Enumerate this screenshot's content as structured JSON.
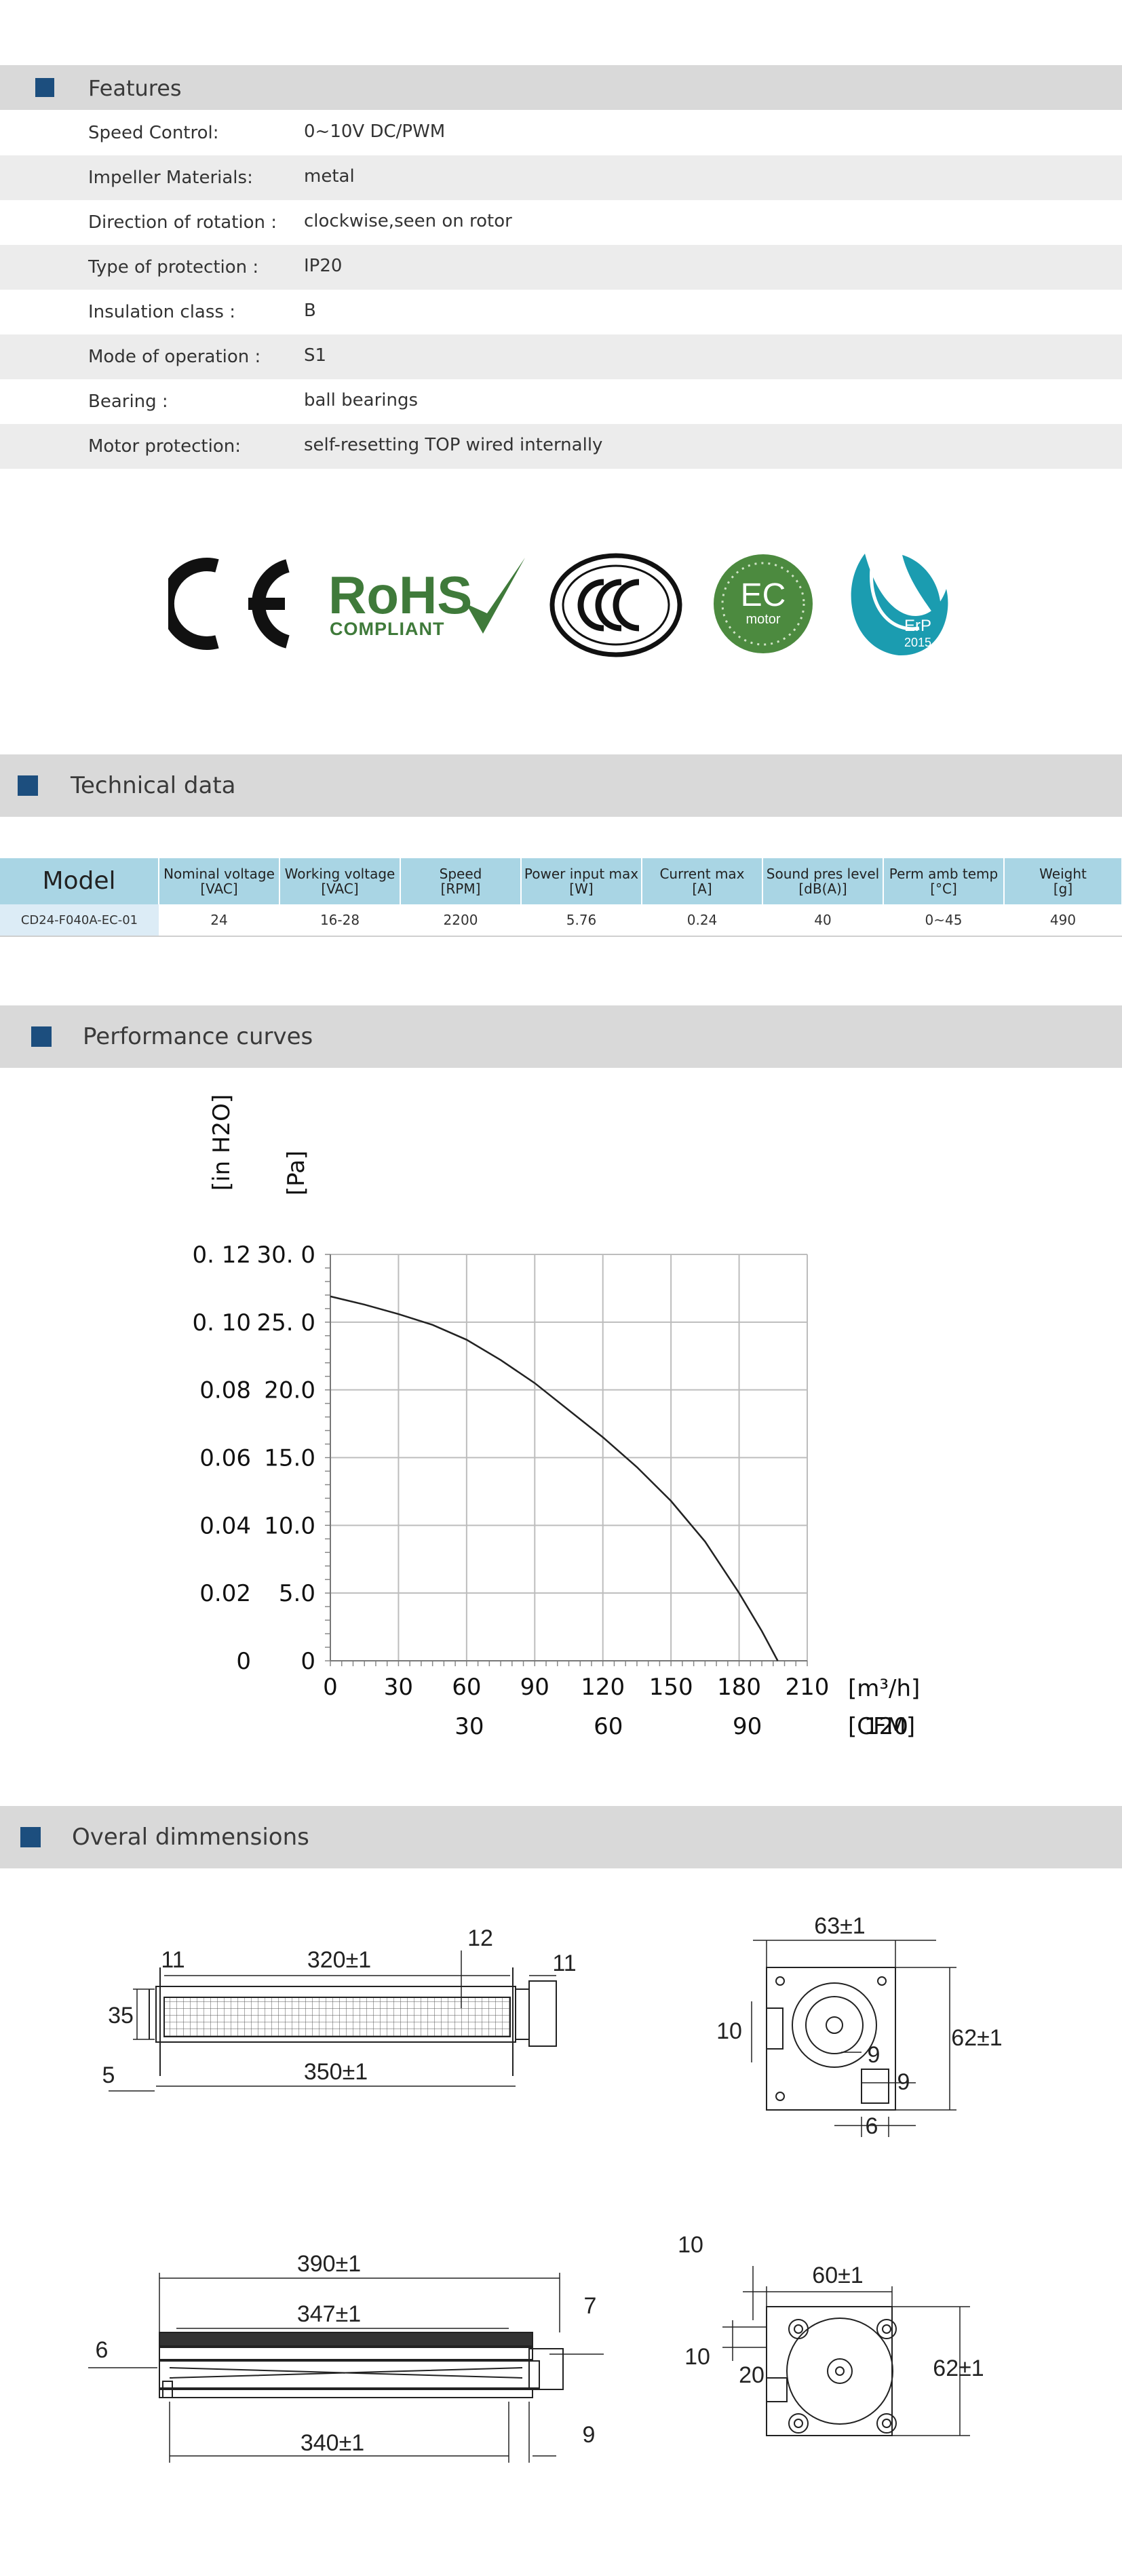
{
  "features": {
    "title": "Features",
    "rows": [
      {
        "label": "Speed Control:",
        "value": "0~10V DC/PWM"
      },
      {
        "label": "Impeller Materials:",
        "value": "metal"
      },
      {
        "label": "Direction  of  rotation  :",
        "value": "clockwise,seen on rotor"
      },
      {
        "label": "Type of protection :",
        "value": "IP20"
      },
      {
        "label": "Insulation  class :",
        "value": "B"
      },
      {
        "label": "Mode of operation :",
        "value": "S1"
      },
      {
        "label": "Bearing :",
        "value": "ball  bearings"
      },
      {
        "label": "Motor protection:",
        "value": "self-resetting TOP wired internally"
      }
    ]
  },
  "certifications": {
    "ce": "CE",
    "rohs_main": "RoHS",
    "rohs_sub": "COMPLIANT",
    "ccc": "CCC",
    "ec_main": "EC",
    "ec_sub": "motor",
    "erp_main": "ErP",
    "erp_year": "2015"
  },
  "technical": {
    "title": "Technical data",
    "headers": [
      {
        "l1": "Model",
        "l2": ""
      },
      {
        "l1": "Nominal voltage",
        "l2": "[VAC]"
      },
      {
        "l1": "Working voltage",
        "l2": "[VAC]"
      },
      {
        "l1": "Speed",
        "l2": "[RPM]"
      },
      {
        "l1": "Power input max",
        "l2": "[W]"
      },
      {
        "l1": "Current max",
        "l2": "[A]"
      },
      {
        "l1": "Sound pres level",
        "l2": "[dB(A)]"
      },
      {
        "l1": "Perm amb temp",
        "l2": "[°C]"
      },
      {
        "l1": "Weight",
        "l2": "[g]"
      }
    ],
    "row": [
      "CD24-F040A-EC-01",
      "24",
      "16-28",
      "2200",
      "5.76",
      "0.24",
      "40",
      "0~45",
      "490"
    ]
  },
  "performance": {
    "title": "Performance curves"
  },
  "chart_data": {
    "type": "line",
    "title": "",
    "ylabel_inh2o": "[in H2O]",
    "ylabel_pa": "[Pa]",
    "xlabel_m3h": "[m³/h]",
    "xlabel_cfm": "[CFM]",
    "xlim": [
      0,
      210
    ],
    "ylim": [
      0,
      30
    ],
    "x_ticks": [
      "0",
      "30",
      "60",
      "90",
      "120",
      "150",
      "180",
      "210"
    ],
    "cfm_ticks": [
      "30",
      "60",
      "90",
      "120"
    ],
    "cfm_tick_values": [
      51,
      102,
      153,
      204
    ],
    "pa_ticks": [
      "0",
      "5.0",
      "10.0",
      "15.0",
      "20.0",
      "25. 0",
      "30. 0"
    ],
    "inh2o_ticks": [
      "0",
      "0.02",
      "0.04",
      "0.06",
      "0.08",
      "0. 10",
      "0. 12"
    ],
    "grid": true,
    "series": [
      {
        "x": [
          0,
          15,
          30,
          45,
          60,
          75,
          90,
          105,
          120,
          135,
          150,
          165,
          180,
          190,
          197
        ],
        "values": [
          26.9,
          26.3,
          25.6,
          24.8,
          23.7,
          22.2,
          20.5,
          18.5,
          16.5,
          14.3,
          11.8,
          8.8,
          5.0,
          2.2,
          0
        ]
      }
    ]
  },
  "dimensions": {
    "title": "Overal dimmensions",
    "d1": {
      "top": "320±1",
      "bottom": "350±1",
      "left_top": "11",
      "right_top": "11",
      "mid": "12",
      "height": "35",
      "foot": "5"
    },
    "d2": {
      "width": "63±1",
      "height": "62±1",
      "left": "10",
      "a": "9",
      "b": "9",
      "c": "6"
    },
    "d3": {
      "top": "390±1",
      "mid": "347±1",
      "bottom": "340±1",
      "left": "6",
      "right_top": "7",
      "right_bottom": "9"
    },
    "d4": {
      "width": "60±1",
      "height": "62±1",
      "top": "10",
      "left": "10",
      "mid": "20"
    }
  }
}
